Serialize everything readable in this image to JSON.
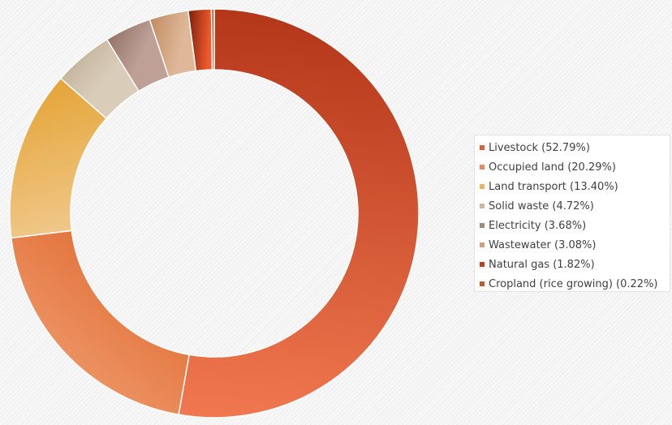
{
  "chart_data": {
    "type": "pie",
    "donut": true,
    "legend_position": "right",
    "slices": [
      {
        "label": "Livestock (52.79%)",
        "value": 52.79,
        "color": "#e05e3a",
        "color_dark": "#b5371a",
        "color_light": "#f0784f"
      },
      {
        "label": "Occupied land (20.29%)",
        "value": 20.29,
        "color": "#ec8a5a",
        "color_dark": "#dc5f22",
        "color_light": "#f3a77c"
      },
      {
        "label": "Land transport (13.40%)",
        "value": 13.4,
        "color": "#ebb560",
        "color_dark": "#e4a12f",
        "color_light": "#f0c98c"
      },
      {
        "label": "Solid waste (4.72%)",
        "value": 4.72,
        "color": "#c9b9a0",
        "color_dark": "#b7a68c",
        "color_light": "#d9cdb9"
      },
      {
        "label": "Electricity (3.68%)",
        "value": 3.68,
        "color": "#a68679",
        "color_dark": "#8a6a5f",
        "color_light": "#bea096"
      },
      {
        "label": "Wastewater (3.08%)",
        "value": 3.08,
        "color": "#d1a07a",
        "color_dark": "#bf8a60",
        "color_light": "#dfb899"
      },
      {
        "label": "Natural gas (1.82%)",
        "value": 1.82,
        "color": "#c63c1e",
        "color_dark": "#7a1f0c",
        "color_light": "#ee5a2c"
      },
      {
        "label": "Cropland (rice growing) (0.22%)",
        "value": 0.22,
        "color": "#c65a28",
        "color_dark": "#a84418",
        "color_light": "#d8744a"
      }
    ]
  }
}
